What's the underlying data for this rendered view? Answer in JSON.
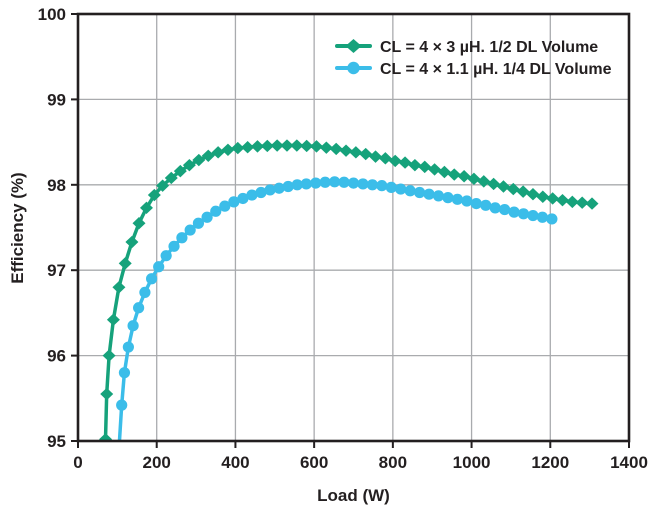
{
  "chart_data": {
    "type": "line",
    "title": "",
    "xlabel": "Load (W)",
    "ylabel": "Efficiency (%)",
    "xlim": [
      0,
      1400
    ],
    "ylim": [
      95,
      100
    ],
    "xticks": [
      0,
      200,
      400,
      600,
      800,
      1000,
      1200,
      1400
    ],
    "yticks": [
      95,
      96,
      97,
      98,
      99,
      100
    ],
    "grid": true,
    "legend_position": "inside-top-center",
    "series": [
      {
        "name": "CL = 4 × 3 µH. 1/2 DL Volume",
        "color": "#16A27B",
        "marker": "diamond",
        "points": [
          [
            70,
            95.02
          ],
          [
            73,
            95.55
          ],
          [
            79,
            96.0
          ],
          [
            90,
            96.42
          ],
          [
            104,
            96.8
          ],
          [
            120,
            97.08
          ],
          [
            137,
            97.33
          ],
          [
            155,
            97.55
          ],
          [
            174,
            97.73
          ],
          [
            194,
            97.88
          ],
          [
            215,
            97.99
          ],
          [
            237,
            98.08
          ],
          [
            260,
            98.16
          ],
          [
            283,
            98.23
          ],
          [
            307,
            98.29
          ],
          [
            331,
            98.34
          ],
          [
            356,
            98.38
          ],
          [
            381,
            98.41
          ],
          [
            406,
            98.43
          ],
          [
            431,
            98.44
          ],
          [
            456,
            98.45
          ],
          [
            481,
            98.455
          ],
          [
            506,
            98.46
          ],
          [
            531,
            98.46
          ],
          [
            556,
            98.46
          ],
          [
            581,
            98.455
          ],
          [
            606,
            98.45
          ],
          [
            631,
            98.435
          ],
          [
            656,
            98.42
          ],
          [
            681,
            98.4
          ],
          [
            706,
            98.38
          ],
          [
            731,
            98.36
          ],
          [
            756,
            98.33
          ],
          [
            781,
            98.31
          ],
          [
            806,
            98.28
          ],
          [
            831,
            98.26
          ],
          [
            856,
            98.23
          ],
          [
            881,
            98.21
          ],
          [
            906,
            98.18
          ],
          [
            931,
            98.15
          ],
          [
            956,
            98.12
          ],
          [
            981,
            98.1
          ],
          [
            1006,
            98.07
          ],
          [
            1031,
            98.04
          ],
          [
            1056,
            98.01
          ],
          [
            1081,
            97.98
          ],
          [
            1106,
            97.95
          ],
          [
            1131,
            97.92
          ],
          [
            1156,
            97.89
          ],
          [
            1181,
            97.86
          ],
          [
            1206,
            97.84
          ],
          [
            1231,
            97.82
          ],
          [
            1256,
            97.8
          ],
          [
            1281,
            97.79
          ],
          [
            1306,
            97.78
          ]
        ]
      },
      {
        "name": "CL = 4 × 1.1 µH. 1/4 DL Volume",
        "color": "#3BBDE9",
        "marker": "circle",
        "points": [
          [
            105,
            94.97
          ],
          [
            111,
            95.42
          ],
          [
            118,
            95.8
          ],
          [
            128,
            96.1
          ],
          [
            140,
            96.35
          ],
          [
            154,
            96.56
          ],
          [
            170,
            96.74
          ],
          [
            187,
            96.9
          ],
          [
            205,
            97.04
          ],
          [
            224,
            97.17
          ],
          [
            244,
            97.28
          ],
          [
            264,
            97.38
          ],
          [
            285,
            97.47
          ],
          [
            306,
            97.55
          ],
          [
            328,
            97.62
          ],
          [
            350,
            97.69
          ],
          [
            373,
            97.75
          ],
          [
            396,
            97.8
          ],
          [
            419,
            97.84
          ],
          [
            442,
            97.88
          ],
          [
            465,
            97.91
          ],
          [
            488,
            97.94
          ],
          [
            511,
            97.96
          ],
          [
            534,
            97.98
          ],
          [
            557,
            98.0
          ],
          [
            580,
            98.01
          ],
          [
            604,
            98.02
          ],
          [
            628,
            98.03
          ],
          [
            652,
            98.035
          ],
          [
            676,
            98.03
          ],
          [
            700,
            98.02
          ],
          [
            724,
            98.01
          ],
          [
            748,
            98.0
          ],
          [
            772,
            97.99
          ],
          [
            796,
            97.97
          ],
          [
            820,
            97.95
          ],
          [
            844,
            97.93
          ],
          [
            868,
            97.91
          ],
          [
            892,
            97.89
          ],
          [
            916,
            97.87
          ],
          [
            940,
            97.85
          ],
          [
            964,
            97.83
          ],
          [
            988,
            97.81
          ],
          [
            1012,
            97.78
          ],
          [
            1036,
            97.76
          ],
          [
            1060,
            97.73
          ],
          [
            1084,
            97.71
          ],
          [
            1108,
            97.68
          ],
          [
            1132,
            97.66
          ],
          [
            1156,
            97.64
          ],
          [
            1180,
            97.62
          ],
          [
            1204,
            97.6
          ]
        ]
      }
    ]
  },
  "colors": {
    "axis_text": "#231F20",
    "border": "#231F20",
    "grid": "#A9ABAE",
    "background": "#FFFFFF"
  }
}
